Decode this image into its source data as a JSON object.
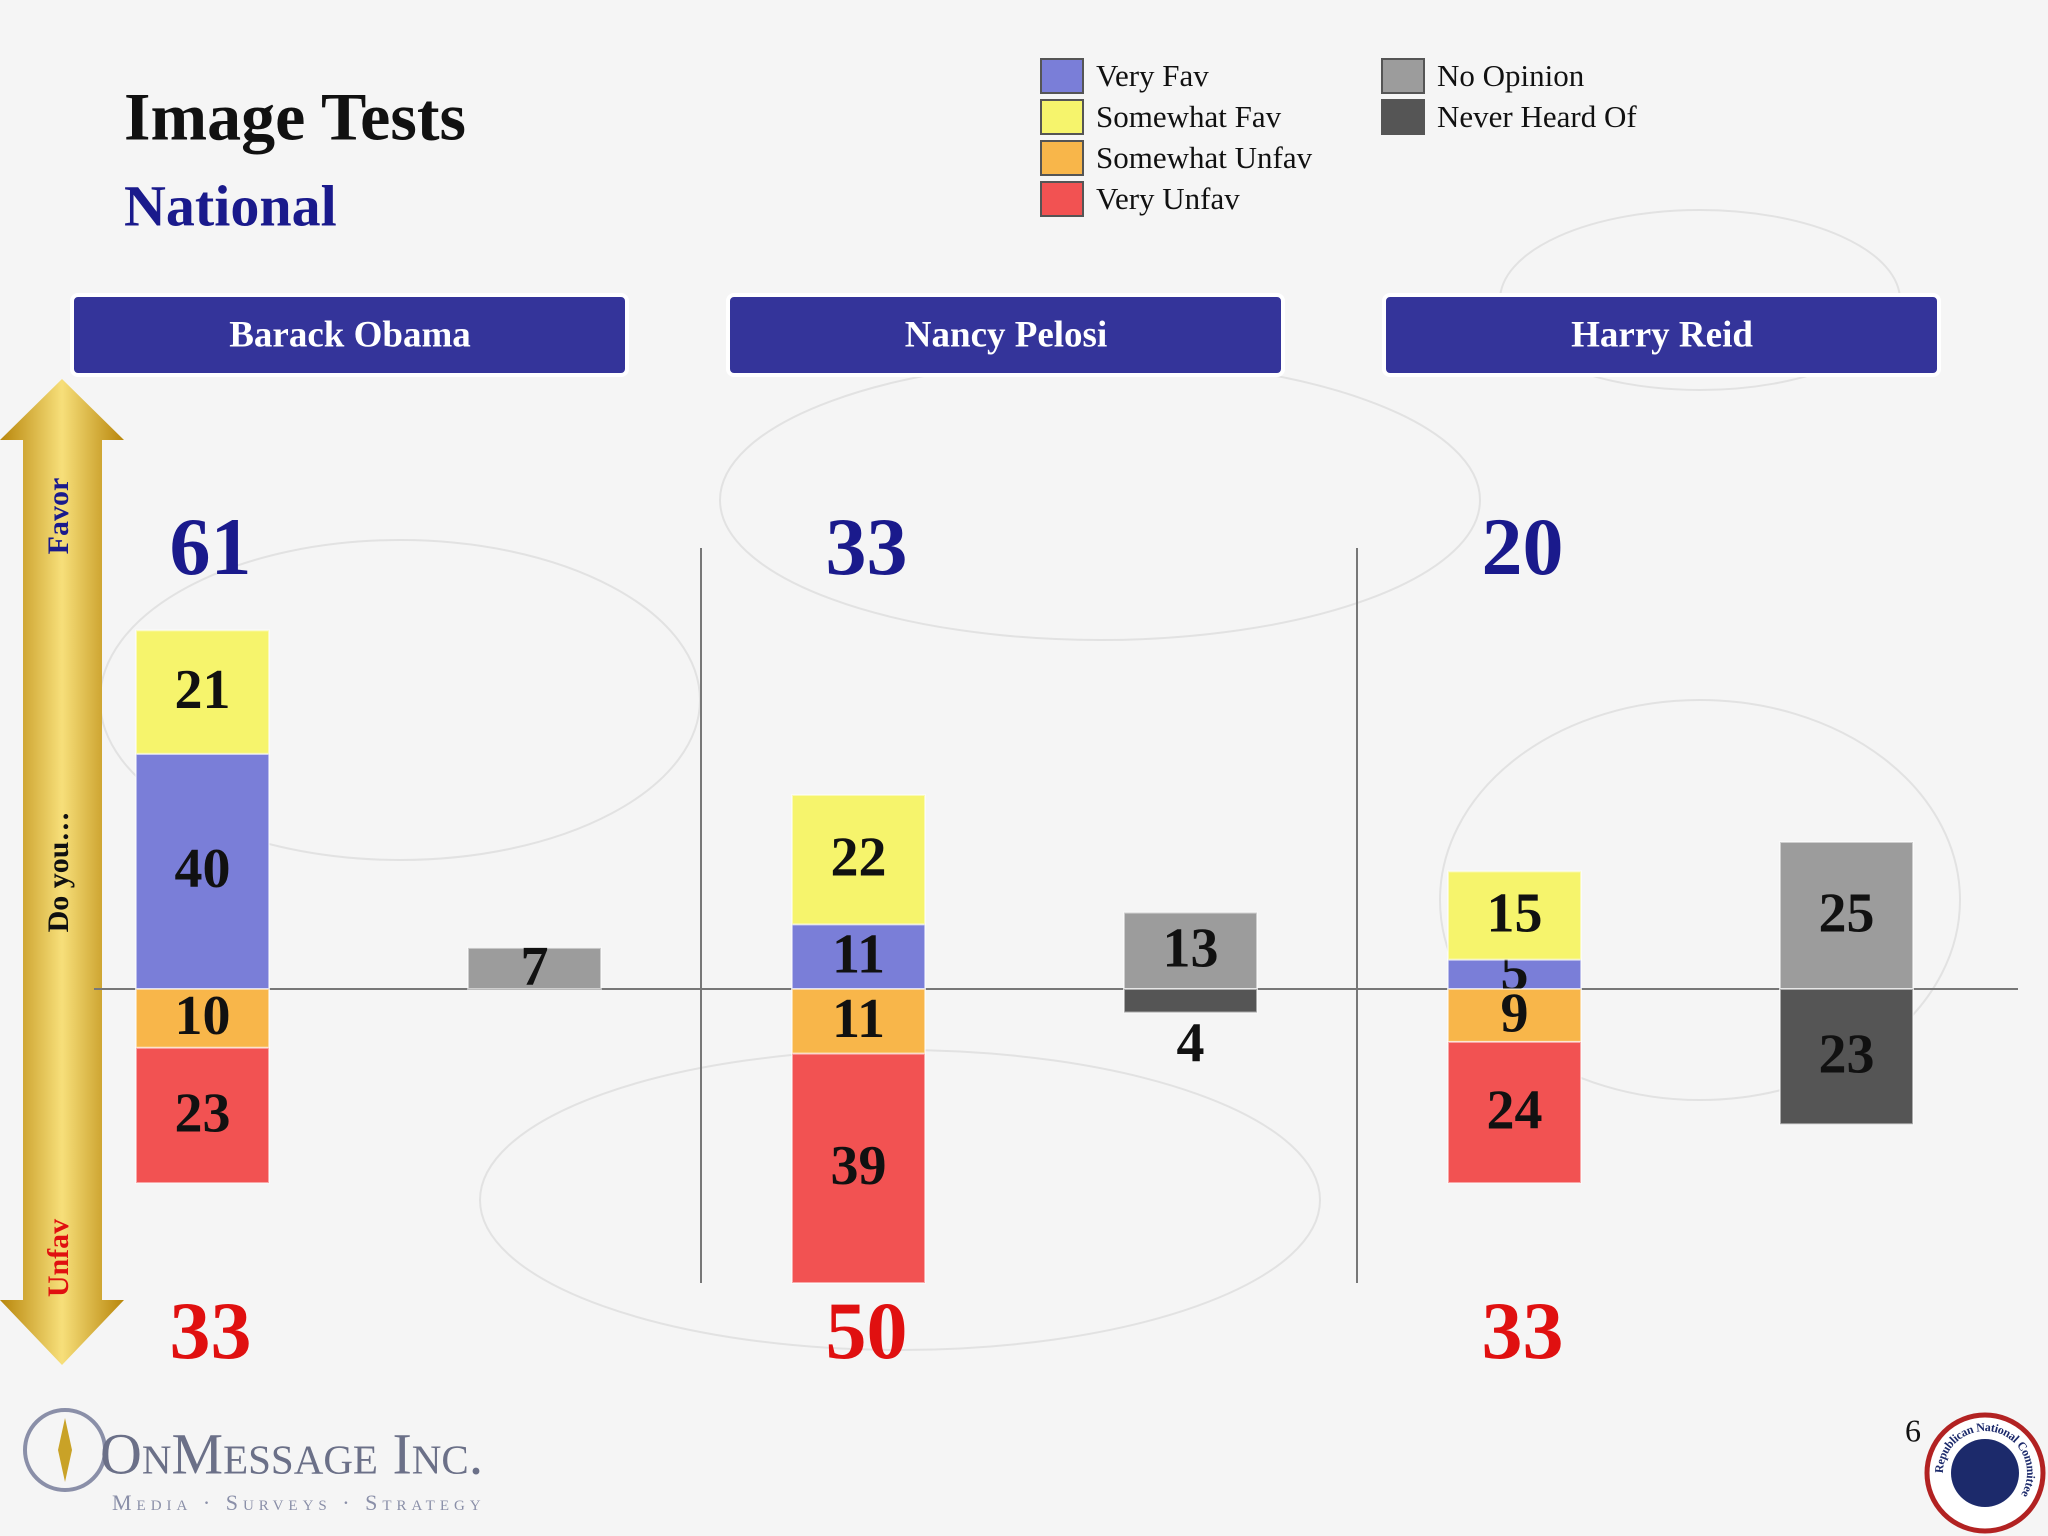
{
  "header": {
    "title": "Image Tests",
    "subtitle": "National"
  },
  "side_axis": {
    "top": "Favor",
    "middle": "Do you…",
    "bottom": "Unfav"
  },
  "chart_data": {
    "type": "diverging-stacked-bar",
    "categories": [
      "Barack Obama",
      "Nancy Pelosi",
      "Harry Reid"
    ],
    "series": [
      {
        "name": "Very Fav",
        "color": "#7a7ed8",
        "values": [
          40,
          11,
          5
        ]
      },
      {
        "name": "Somewhat Fav",
        "color": "#f6f46c",
        "values": [
          21,
          22,
          15
        ]
      },
      {
        "name": "Somewhat Unfav",
        "color": "#f8b64a",
        "values": [
          -10,
          -11,
          -9
        ],
        "value_labels": [
          "10",
          "11",
          "9"
        ]
      },
      {
        "name": "Very Unfav",
        "color": "#f25252",
        "values": [
          -23,
          -39,
          -24
        ],
        "value_labels": [
          "23",
          "39",
          "24"
        ]
      },
      {
        "name": "No Opinion",
        "color": "#9c9c9c",
        "values": [
          7,
          13,
          25
        ]
      },
      {
        "name": "Never Heard Of",
        "color": "#555555",
        "values": [
          null,
          -4,
          -23
        ],
        "value_labels": [
          null,
          "4",
          "23"
        ]
      }
    ],
    "favor_totals": [
      61,
      33,
      20
    ],
    "unfav_totals": [
      33,
      50,
      33
    ],
    "ylim": [
      -50,
      75
    ]
  },
  "footer": {
    "logo": "OnMessage Inc.",
    "tagline": "Media · Surveys · Strategy",
    "page": "6",
    "seal": "Republican National Committee"
  }
}
